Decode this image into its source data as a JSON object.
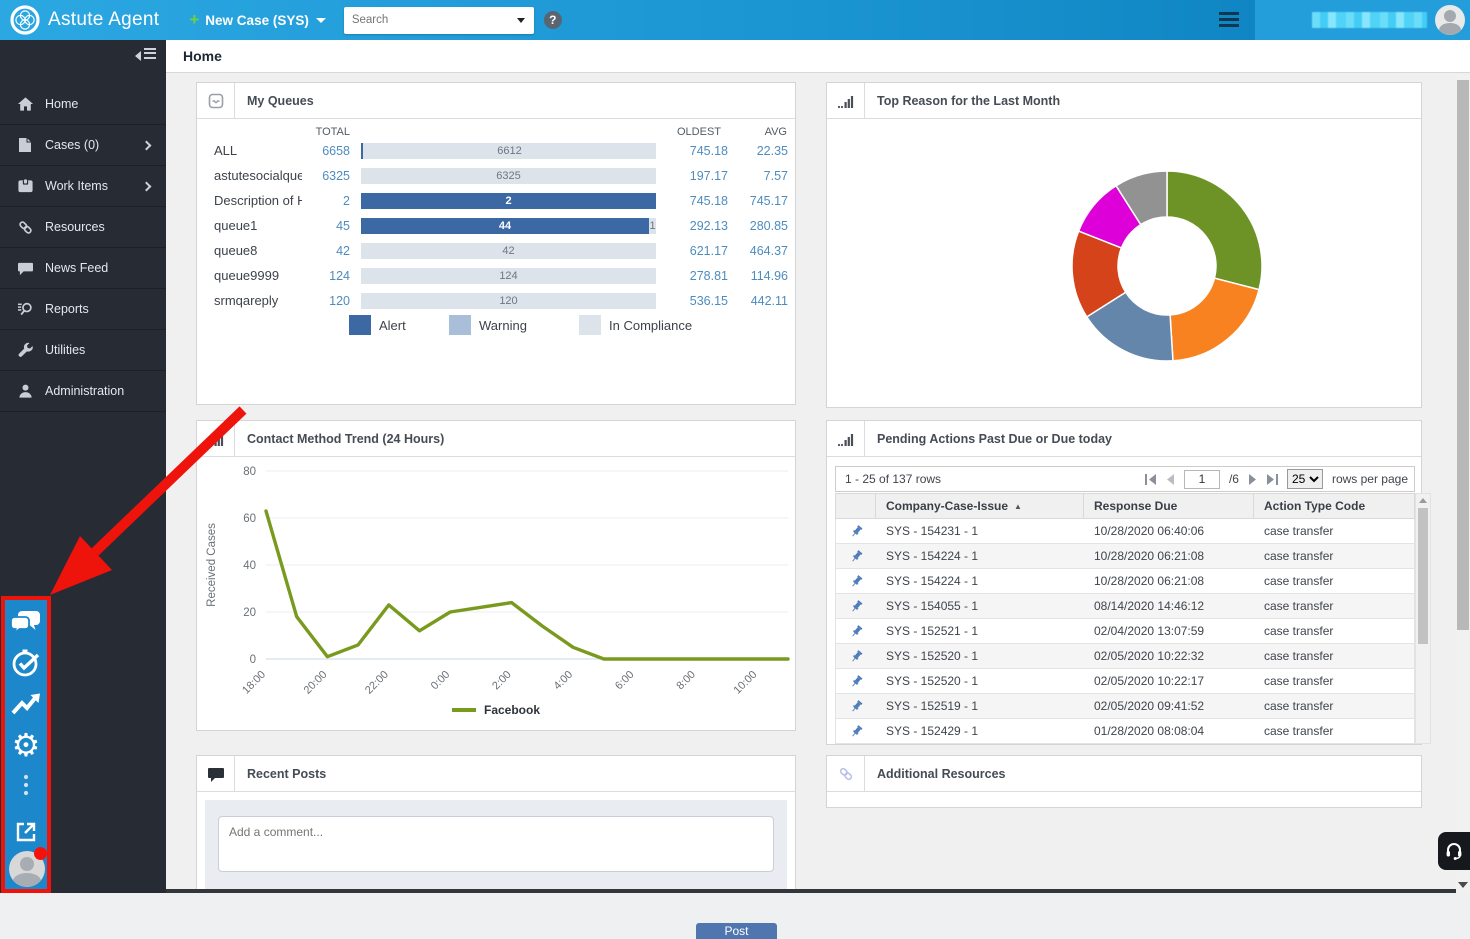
{
  "topbar": {
    "app_title": "Astute Agent",
    "new_case_label": "New Case (SYS)",
    "search_placeholder": "Search",
    "help_label": "?"
  },
  "sidebar": {
    "items": [
      {
        "label": "Home",
        "icon": "home-icon",
        "chevron": false
      },
      {
        "label": "Cases (0)",
        "icon": "cases-icon",
        "chevron": true
      },
      {
        "label": "Work Items",
        "icon": "work-items-icon",
        "chevron": true
      },
      {
        "label": "Resources",
        "icon": "resources-icon",
        "chevron": false
      },
      {
        "label": "News Feed",
        "icon": "news-feed-icon",
        "chevron": false
      },
      {
        "label": "Reports",
        "icon": "reports-icon",
        "chevron": false
      },
      {
        "label": "Utilities",
        "icon": "utilities-icon",
        "chevron": false
      },
      {
        "label": "Administration",
        "icon": "administration-icon",
        "chevron": false
      }
    ]
  },
  "breadcrumb": {
    "title": "Home"
  },
  "my_queues": {
    "title": "My Queues",
    "col_total": "TOTAL",
    "col_oldest": "OLDEST",
    "col_avg": "AVG",
    "colors": {
      "alert": "#3c68a4",
      "warning": "#a9bfd9",
      "compliance": "#dde3ea"
    },
    "legend": [
      {
        "label": "Alert",
        "kind": "alert"
      },
      {
        "label": "Warning",
        "kind": "warning"
      },
      {
        "label": "In Compliance",
        "kind": "compliance"
      }
    ],
    "rows": [
      {
        "name": "ALL",
        "total": "6658",
        "oldest": "745.18",
        "avg": "22.35",
        "segments": [
          {
            "kind": "alert",
            "value": 46,
            "label": ""
          },
          {
            "kind": "compliance",
            "value": 6612,
            "label": "6612"
          }
        ]
      },
      {
        "name": "astutesocialque...",
        "total": "6325",
        "oldest": "197.17",
        "avg": "7.57",
        "segments": [
          {
            "kind": "compliance",
            "value": 6325,
            "label": "6325"
          }
        ]
      },
      {
        "name": "Description of H...",
        "total": "2",
        "oldest": "745.18",
        "avg": "745.17",
        "segments": [
          {
            "kind": "alert",
            "value": 2,
            "label": "2"
          }
        ]
      },
      {
        "name": "queue1",
        "total": "45",
        "oldest": "292.13",
        "avg": "280.85",
        "segments": [
          {
            "kind": "alert",
            "value": 44,
            "label": "44"
          },
          {
            "kind": "compliance",
            "value": 1,
            "label": "1"
          }
        ]
      },
      {
        "name": "queue8",
        "total": "42",
        "oldest": "621.17",
        "avg": "464.37",
        "segments": [
          {
            "kind": "compliance",
            "value": 42,
            "label": "42"
          }
        ]
      },
      {
        "name": "queue9999",
        "total": "124",
        "oldest": "278.81",
        "avg": "114.96",
        "segments": [
          {
            "kind": "compliance",
            "value": 124,
            "label": "124"
          }
        ]
      },
      {
        "name": "srmqareply",
        "total": "120",
        "oldest": "536.15",
        "avg": "442.11",
        "segments": [
          {
            "kind": "compliance",
            "value": 120,
            "label": "120"
          }
        ]
      }
    ]
  },
  "top_reason": {
    "title": "Top Reason for the Last Month"
  },
  "contact_trend": {
    "title": "Contact Method Trend (24 Hours)"
  },
  "pending": {
    "title": "Pending Actions Past Due or Due today",
    "pagination": {
      "range": "1 - 25 of 137 rows",
      "page": "1",
      "of_pages": "/6",
      "page_size": "25",
      "rows_per_page": "rows per page"
    },
    "columns": {
      "case": "Company-Case-Issue",
      "sort": "▲",
      "due": "Response Due",
      "action": "Action Type Code"
    },
    "rows": [
      {
        "case": "SYS - 154231 - 1",
        "due": "10/28/2020 06:40:06",
        "action": "case transfer"
      },
      {
        "case": "SYS - 154224 - 1",
        "due": "10/28/2020 06:21:08",
        "action": "case transfer"
      },
      {
        "case": "SYS - 154224 - 1",
        "due": "10/28/2020 06:21:08",
        "action": "case transfer"
      },
      {
        "case": "SYS - 154055 - 1",
        "due": "08/14/2020 14:46:12",
        "action": "case transfer"
      },
      {
        "case": "SYS - 152521 - 1",
        "due": "02/04/2020 13:07:59",
        "action": "case transfer"
      },
      {
        "case": "SYS - 152520 - 1",
        "due": "02/05/2020 10:22:32",
        "action": "case transfer"
      },
      {
        "case": "SYS - 152520 - 1",
        "due": "02/05/2020 10:22:17",
        "action": "case transfer"
      },
      {
        "case": "SYS - 152519 - 1",
        "due": "02/05/2020 09:41:52",
        "action": "case transfer"
      },
      {
        "case": "SYS - 152429 - 1",
        "due": "01/28/2020 08:08:04",
        "action": "case transfer"
      }
    ]
  },
  "recent_posts": {
    "title": "Recent Posts",
    "comment_placeholder": "Add a comment...",
    "post_label": "Post"
  },
  "additional_resources": {
    "title": "Additional Resources"
  },
  "quick_toolbar": {
    "icons": [
      "chat-bubbles-icon",
      "timer-check-icon",
      "trending-up-icon",
      "gear-icon",
      "more-options-icon",
      "open-external-icon",
      "profile-avatar"
    ]
  },
  "chart_data": [
    {
      "type": "pie",
      "title": "Top Reason for the Last Month",
      "donut": true,
      "legend_position": "none",
      "segments": [
        {
          "value": 29,
          "color": "#6d9327"
        },
        {
          "value": 20,
          "color": "#f8821f"
        },
        {
          "value": 17,
          "color": "#6586ab"
        },
        {
          "value": 15,
          "color": "#d5431a"
        },
        {
          "value": 10,
          "color": "#dd00d8"
        },
        {
          "value": 9,
          "color": "#929292"
        }
      ]
    },
    {
      "type": "line",
      "title": "Contact Method Trend (24 Hours)",
      "xlabel": "",
      "ylabel": "Received Cases",
      "ylim": [
        0,
        80
      ],
      "yticks": [
        0,
        20,
        40,
        60,
        80
      ],
      "grid": true,
      "legend_position": "bottom",
      "x": [
        "18:00",
        "19:00",
        "20:00",
        "21:00",
        "22:00",
        "23:00",
        "0:00",
        "1:00",
        "2:00",
        "3:00",
        "4:00",
        "5:00",
        "6:00",
        "7:00",
        "8:00",
        "9:00",
        "10:00",
        "11:00"
      ],
      "x_tick_labels": [
        "18:00",
        "20:00",
        "22:00",
        "0:00",
        "2:00",
        "4:00",
        "6:00",
        "8:00",
        "10:00"
      ],
      "series": [
        {
          "name": "Facebook",
          "color": "#7a9a1f",
          "values": [
            63,
            18,
            1,
            6,
            23,
            12,
            20,
            22,
            24,
            14,
            5,
            0,
            0,
            0,
            0,
            0,
            0,
            0
          ]
        }
      ]
    }
  ]
}
